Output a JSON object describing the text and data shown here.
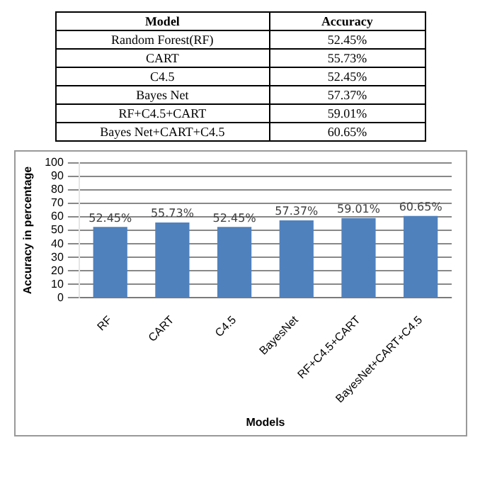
{
  "chart_data": [
    {
      "type": "other",
      "annotations": [
        "Model",
        "Accuracy",
        "Random Forest(RF)",
        "52.45%",
        "CART",
        "55.73%",
        "C4.5",
        "52.45%",
        "Bayes Net",
        "57.37%",
        "RF+C4.5+CART",
        "59.01%",
        "Bayes Net+CART+C4.5",
        "60.65%"
      ]
    },
    {
      "type": "bar",
      "xlabel": "Models",
      "ylabel": "Accuracy in percentage",
      "categories": [
        "RF",
        "CART",
        "C4.5",
        "BayesNet",
        "RF+C4.5+CART",
        "BayesNet+CART+C4.5"
      ],
      "values": [
        52.45,
        55.73,
        52.45,
        57.37,
        59.01,
        60.65
      ],
      "value_labels": [
        "52.45%",
        "55.73%",
        "52.45%",
        "57.37%",
        "59.01%",
        "60.65%"
      ],
      "color": "#4f81bd",
      "ylim": [
        0,
        100
      ],
      "yticks": [
        0,
        10,
        20,
        30,
        40,
        50,
        60,
        70,
        80,
        90,
        100
      ],
      "grid": "y",
      "legend": false
    }
  ]
}
